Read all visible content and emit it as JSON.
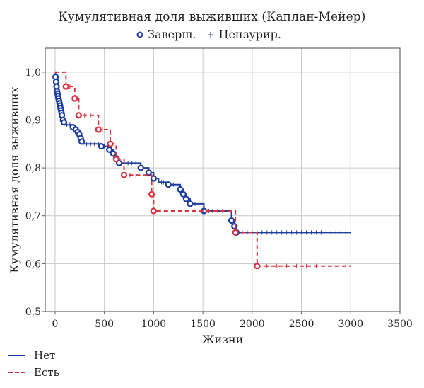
{
  "chart_data": {
    "type": "line",
    "title": "Кумулятивная доля выживших (Каплан-Мейер)",
    "marker_legend": {
      "completed": "Заверш.",
      "censored": "Цензурир."
    },
    "xlabel": "Жизни",
    "ylabel": "Кумулятивная доля выживших",
    "xlim": [
      -100,
      3500
    ],
    "ylim": [
      0.5,
      1.05
    ],
    "x_ticks": [
      "0",
      "500",
      "1000",
      "1500",
      "2000",
      "2500",
      "3000",
      "3500"
    ],
    "y_ticks": [
      "0,5",
      "0,6",
      "0,7",
      "0,8",
      "0,9",
      "1,0"
    ],
    "grid": true,
    "legend_position": "bottom-left",
    "series": [
      {
        "name": "Нет",
        "color": "#1f3f9f",
        "style": "solid",
        "steps": [
          [
            0,
            1.0
          ],
          [
            5,
            0.99
          ],
          [
            10,
            0.98
          ],
          [
            15,
            0.97
          ],
          [
            20,
            0.96
          ],
          [
            25,
            0.955
          ],
          [
            30,
            0.95
          ],
          [
            35,
            0.945
          ],
          [
            40,
            0.94
          ],
          [
            45,
            0.935
          ],
          [
            50,
            0.93
          ],
          [
            55,
            0.925
          ],
          [
            60,
            0.92
          ],
          [
            65,
            0.915
          ],
          [
            70,
            0.91
          ],
          [
            75,
            0.905
          ],
          [
            80,
            0.9
          ],
          [
            90,
            0.895
          ],
          [
            100,
            0.89
          ],
          [
            180,
            0.885
          ],
          [
            210,
            0.88
          ],
          [
            230,
            0.875
          ],
          [
            245,
            0.87
          ],
          [
            260,
            0.862
          ],
          [
            270,
            0.855
          ],
          [
            280,
            0.85
          ],
          [
            470,
            0.845
          ],
          [
            550,
            0.838
          ],
          [
            590,
            0.83
          ],
          [
            620,
            0.82
          ],
          [
            650,
            0.81
          ],
          [
            870,
            0.8
          ],
          [
            950,
            0.79
          ],
          [
            1000,
            0.778
          ],
          [
            1050,
            0.77
          ],
          [
            1150,
            0.765
          ],
          [
            1270,
            0.755
          ],
          [
            1300,
            0.745
          ],
          [
            1330,
            0.735
          ],
          [
            1370,
            0.725
          ],
          [
            1510,
            0.71
          ],
          [
            1790,
            0.69
          ],
          [
            1820,
            0.678
          ],
          [
            1840,
            0.665
          ],
          [
            3000,
            0.665
          ]
        ],
        "events": [
          [
            5,
            0.99
          ],
          [
            10,
            0.98
          ],
          [
            15,
            0.97
          ],
          [
            20,
            0.96
          ],
          [
            25,
            0.955
          ],
          [
            30,
            0.95
          ],
          [
            35,
            0.945
          ],
          [
            40,
            0.94
          ],
          [
            45,
            0.935
          ],
          [
            50,
            0.93
          ],
          [
            55,
            0.925
          ],
          [
            60,
            0.92
          ],
          [
            65,
            0.915
          ],
          [
            70,
            0.91
          ],
          [
            80,
            0.9
          ],
          [
            90,
            0.895
          ],
          [
            180,
            0.885
          ],
          [
            210,
            0.88
          ],
          [
            230,
            0.875
          ],
          [
            245,
            0.87
          ],
          [
            260,
            0.862
          ],
          [
            270,
            0.855
          ],
          [
            470,
            0.845
          ],
          [
            550,
            0.838
          ],
          [
            590,
            0.83
          ],
          [
            620,
            0.82
          ],
          [
            650,
            0.81
          ],
          [
            870,
            0.8
          ],
          [
            950,
            0.79
          ],
          [
            1000,
            0.778
          ],
          [
            1150,
            0.765
          ],
          [
            1270,
            0.755
          ],
          [
            1300,
            0.745
          ],
          [
            1330,
            0.735
          ],
          [
            1370,
            0.725
          ],
          [
            1510,
            0.71
          ],
          [
            1790,
            0.69
          ],
          [
            1820,
            0.678
          ],
          [
            1840,
            0.665
          ]
        ],
        "censored": [
          [
            120,
            0.89
          ],
          [
            150,
            0.89
          ],
          [
            320,
            0.85
          ],
          [
            360,
            0.85
          ],
          [
            400,
            0.85
          ],
          [
            440,
            0.85
          ],
          [
            500,
            0.845
          ],
          [
            700,
            0.81
          ],
          [
            740,
            0.81
          ],
          [
            780,
            0.81
          ],
          [
            820,
            0.81
          ],
          [
            1080,
            0.77
          ],
          [
            1100,
            0.77
          ],
          [
            1200,
            0.765
          ],
          [
            1420,
            0.725
          ],
          [
            1460,
            0.725
          ],
          [
            1560,
            0.71
          ],
          [
            1600,
            0.71
          ],
          [
            1650,
            0.71
          ],
          [
            1700,
            0.71
          ],
          [
            1900,
            0.665
          ],
          [
            1950,
            0.665
          ],
          [
            2000,
            0.665
          ],
          [
            2050,
            0.665
          ],
          [
            2100,
            0.665
          ],
          [
            2150,
            0.665
          ],
          [
            2200,
            0.665
          ],
          [
            2250,
            0.665
          ],
          [
            2300,
            0.665
          ],
          [
            2350,
            0.665
          ],
          [
            2400,
            0.665
          ],
          [
            2450,
            0.665
          ],
          [
            2500,
            0.665
          ],
          [
            2550,
            0.665
          ],
          [
            2600,
            0.665
          ],
          [
            2650,
            0.665
          ],
          [
            2700,
            0.665
          ],
          [
            2750,
            0.665
          ],
          [
            2800,
            0.665
          ],
          [
            2850,
            0.665
          ],
          [
            2900,
            0.665
          ],
          [
            2950,
            0.665
          ]
        ]
      },
      {
        "name": "Есть",
        "color": "#d9333f",
        "style": "dashed",
        "steps": [
          [
            0,
            1.0
          ],
          [
            110,
            0.97
          ],
          [
            200,
            0.945
          ],
          [
            240,
            0.91
          ],
          [
            440,
            0.88
          ],
          [
            560,
            0.85
          ],
          [
            620,
            0.818
          ],
          [
            700,
            0.785
          ],
          [
            980,
            0.745
          ],
          [
            1000,
            0.71
          ],
          [
            1830,
            0.665
          ],
          [
            2050,
            0.595
          ],
          [
            3000,
            0.595
          ]
        ],
        "events": [
          [
            110,
            0.97
          ],
          [
            200,
            0.945
          ],
          [
            240,
            0.91
          ],
          [
            440,
            0.88
          ],
          [
            560,
            0.85
          ],
          [
            620,
            0.818
          ],
          [
            700,
            0.785
          ],
          [
            980,
            0.745
          ],
          [
            1000,
            0.71
          ],
          [
            1830,
            0.665
          ],
          [
            2050,
            0.595
          ]
        ],
        "censored": [
          [
            150,
            0.97
          ],
          [
            300,
            0.91
          ],
          [
            360,
            0.91
          ],
          [
            480,
            0.88
          ],
          [
            640,
            0.818
          ],
          [
            760,
            0.785
          ],
          [
            820,
            0.785
          ],
          [
            1550,
            0.71
          ],
          [
            1650,
            0.71
          ],
          [
            2150,
            0.595
          ],
          [
            2250,
            0.595
          ],
          [
            2350,
            0.595
          ],
          [
            2450,
            0.595
          ],
          [
            2550,
            0.595
          ],
          [
            2650,
            0.595
          ],
          [
            2750,
            0.595
          ],
          [
            2850,
            0.595
          ],
          [
            2950,
            0.595
          ]
        ]
      }
    ]
  }
}
